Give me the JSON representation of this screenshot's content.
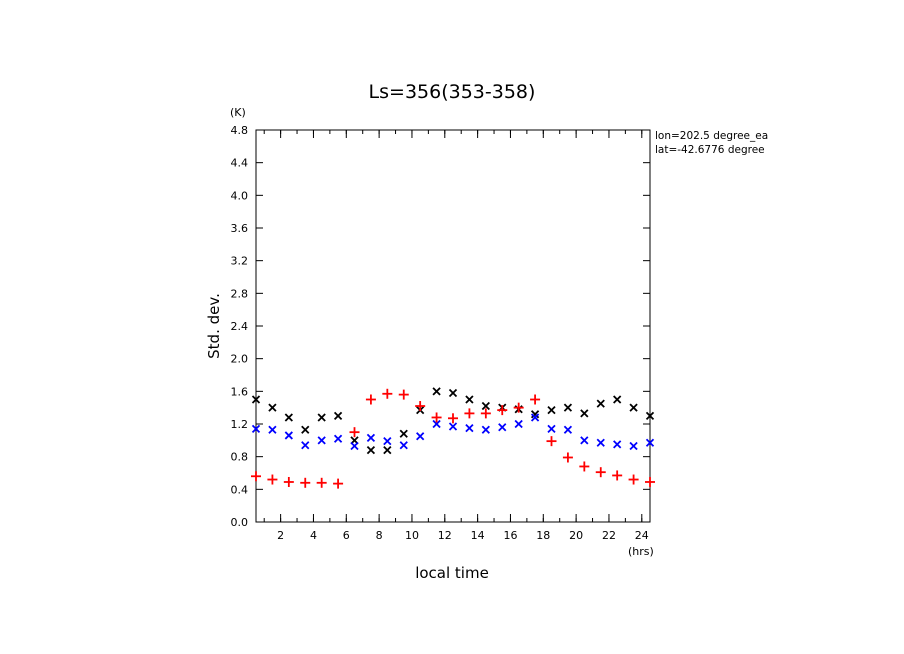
{
  "chart_data": {
    "type": "scatter",
    "title": "Ls=356(353-358)",
    "xlabel": "local time",
    "ylabel": "Std. dev.",
    "x_unit": "(hrs)",
    "y_unit": "(K)",
    "xlim": [
      0.5,
      24.5
    ],
    "ylim": [
      0,
      4.8
    ],
    "xticks": [
      2,
      4,
      6,
      8,
      10,
      12,
      14,
      16,
      18,
      20,
      22,
      24
    ],
    "yticks": [
      0.0,
      0.4,
      0.8,
      1.2,
      1.6,
      2.0,
      2.4,
      2.8,
      3.2,
      3.6,
      4.0,
      4.4,
      4.8
    ],
    "annotations": [
      "lon=202.5 degree_ea",
      "lat=-42.6776 degree"
    ],
    "x": [
      0.5,
      1.5,
      2.5,
      3.5,
      4.5,
      5.5,
      6.5,
      7.5,
      8.5,
      9.5,
      10.5,
      11.5,
      12.5,
      13.5,
      14.5,
      15.5,
      16.5,
      17.5,
      18.5,
      19.5,
      20.5,
      21.5,
      22.5,
      23.5,
      24.5
    ],
    "series": [
      {
        "marker": "x",
        "color": "#000000",
        "values": [
          1.5,
          1.4,
          1.28,
          1.13,
          1.28,
          1.3,
          1.0,
          0.88,
          0.88,
          1.08,
          1.37,
          1.6,
          1.58,
          1.5,
          1.42,
          1.4,
          1.38,
          1.32,
          1.37,
          1.4,
          1.33,
          1.45,
          1.5,
          1.4,
          1.3
        ]
      },
      {
        "marker": "x",
        "color": "#0000ff",
        "values": [
          1.14,
          1.13,
          1.06,
          0.94,
          1.0,
          1.02,
          0.93,
          1.03,
          0.99,
          0.94,
          1.05,
          1.2,
          1.17,
          1.15,
          1.13,
          1.16,
          1.2,
          1.28,
          1.14,
          1.13,
          1.0,
          0.97,
          0.95,
          0.93,
          0.97
        ]
      },
      {
        "marker": "+",
        "color": "#ff0000",
        "values": [
          0.56,
          0.52,
          0.49,
          0.48,
          0.48,
          0.47,
          1.1,
          1.5,
          1.57,
          1.56,
          1.42,
          1.28,
          1.27,
          1.33,
          1.33,
          1.37,
          1.4,
          1.5,
          0.99,
          0.79,
          0.68,
          0.61,
          0.57,
          0.52,
          0.49
        ]
      }
    ]
  }
}
